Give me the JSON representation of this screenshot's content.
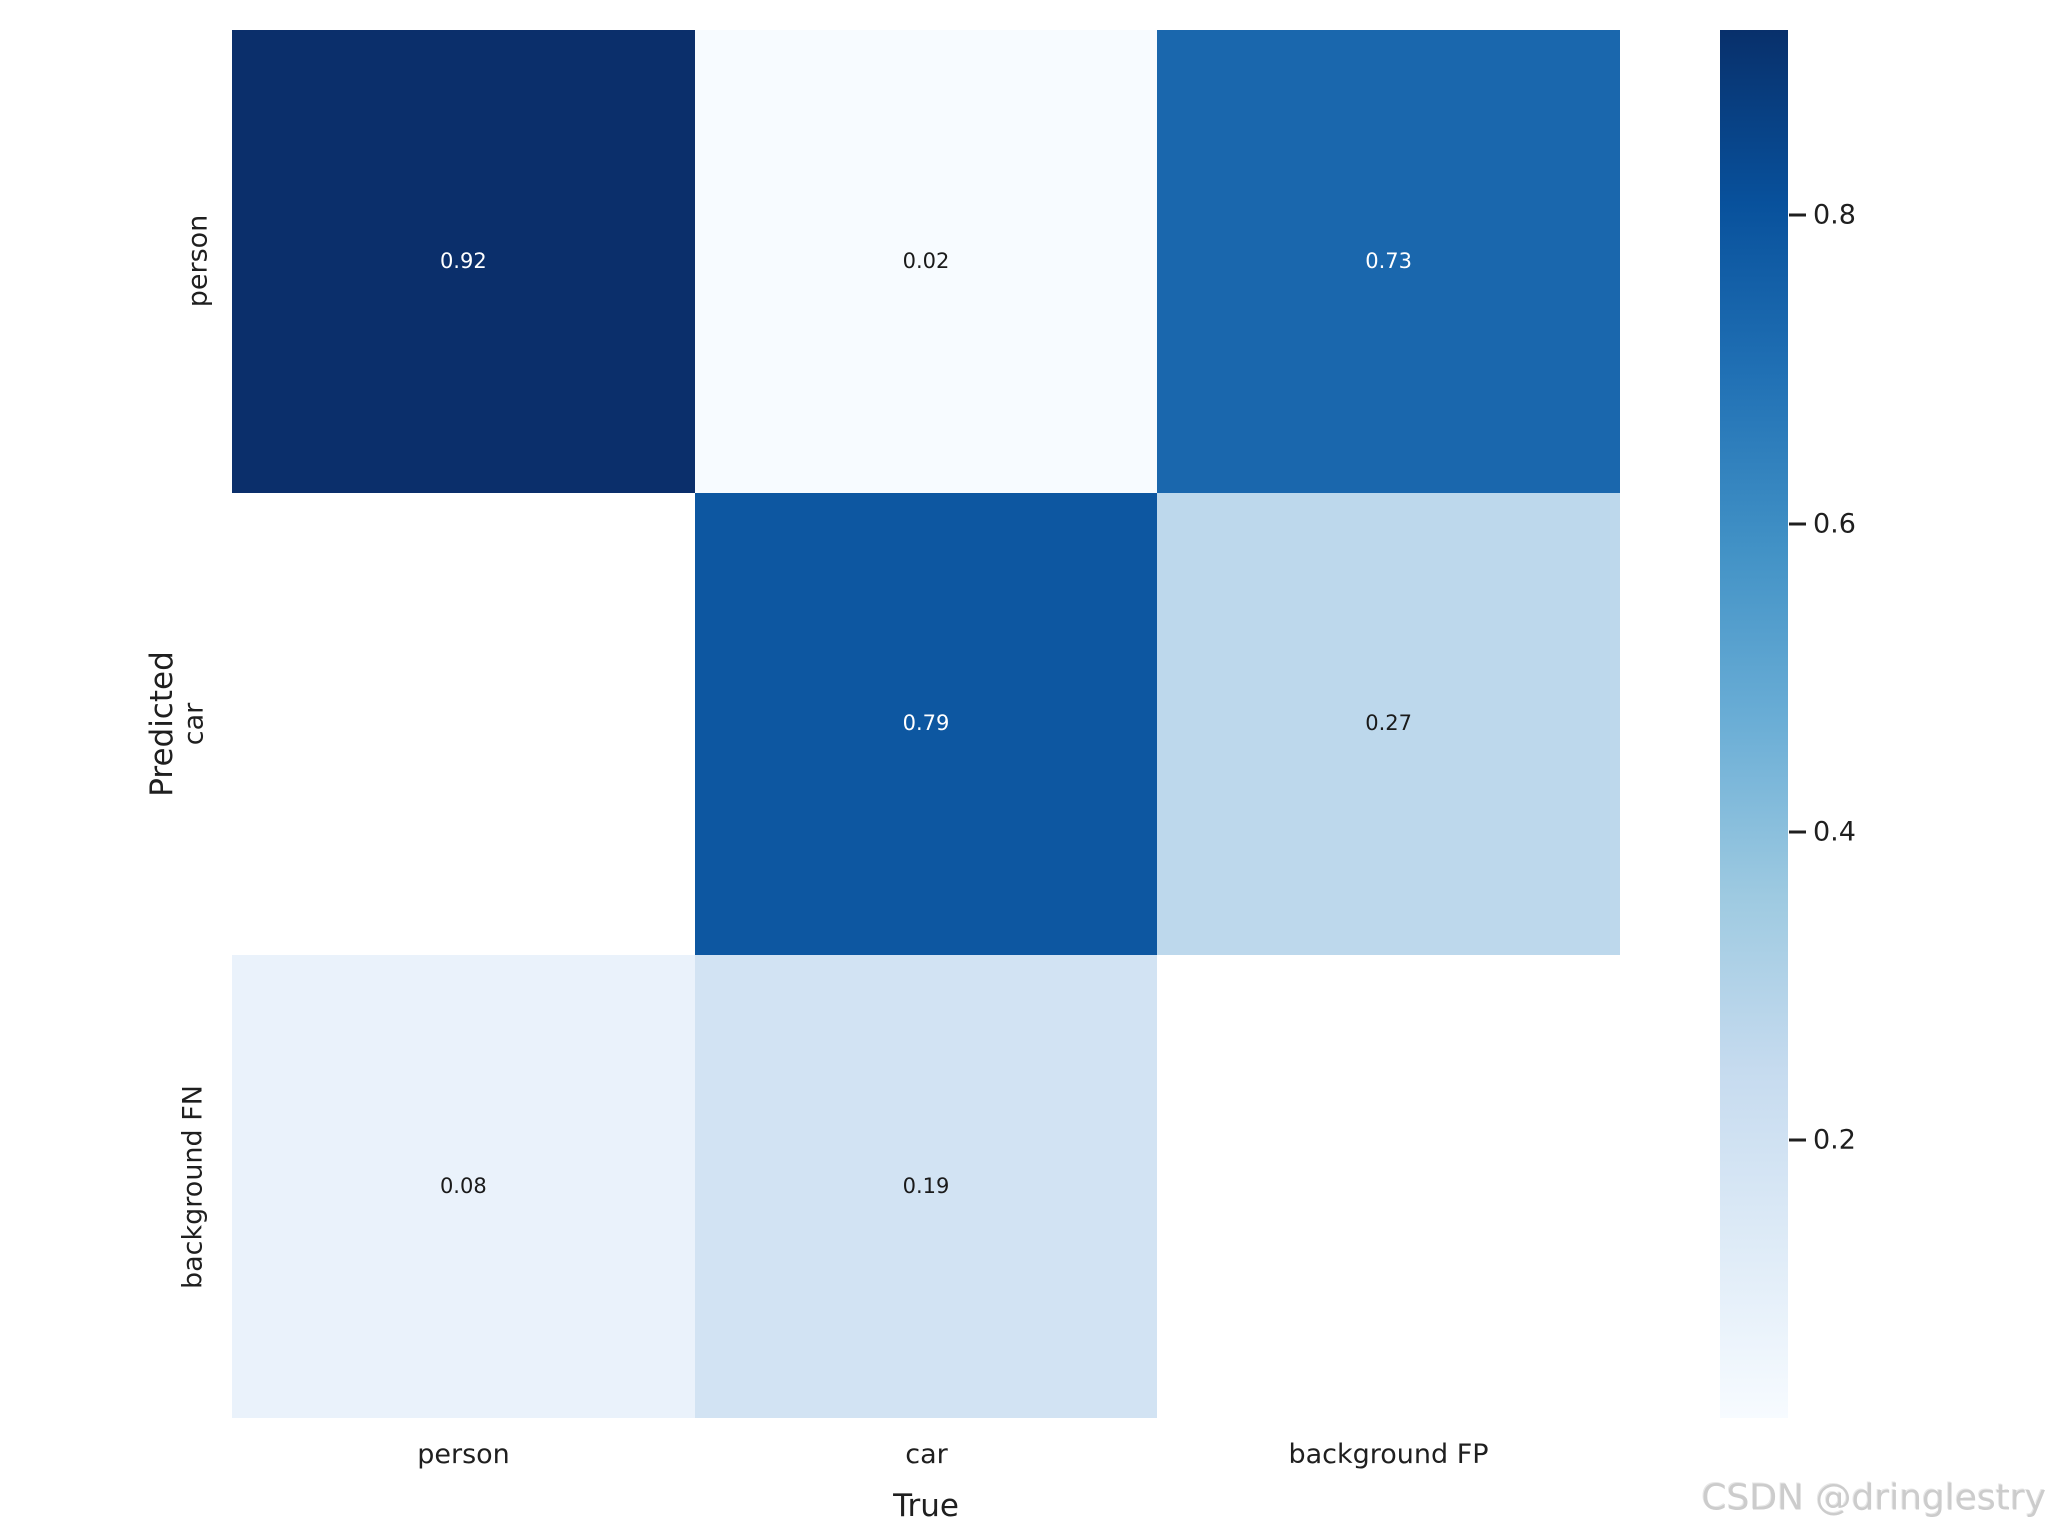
{
  "watermark": "CSDN @dringlestry",
  "axes": {
    "x_label": "True",
    "y_label": "Predicted"
  },
  "x_tick_labels": [
    "person",
    "car",
    "background FP"
  ],
  "y_tick_labels": [
    "person",
    "car",
    "background FN"
  ],
  "colorbar": {
    "tick_labels": [
      "0.8",
      "0.6",
      "0.4",
      "0.2"
    ],
    "tick_values": [
      0.8,
      0.6,
      0.4,
      0.2
    ],
    "vmin": 0.02,
    "vmax": 0.92
  },
  "colors": {
    "annotation_light": "#ffffff",
    "annotation_dark": "#1a1a1a",
    "tick_text": "#1f1f1f",
    "watermark_gray": "#cccccc",
    "colormap_max": "#08306b",
    "colormap_min": "#f7fbff",
    "masked_cell": "#ffffff"
  },
  "chart_data": {
    "type": "heatmap",
    "title": "",
    "xlabel": "True",
    "ylabel": "Predicted",
    "x_categories": [
      "person",
      "car",
      "background FP"
    ],
    "y_categories": [
      "person",
      "car",
      "background FN"
    ],
    "matrix": [
      [
        0.92,
        0.02,
        0.73
      ],
      [
        null,
        0.79,
        0.27
      ],
      [
        0.08,
        0.19,
        null
      ]
    ],
    "colormap": "Blues",
    "vmin": 0.02,
    "vmax": 0.92,
    "colorbar_ticks": [
      0.8,
      0.6,
      0.4,
      0.2
    ],
    "legend_position": "right-colorbar",
    "grid": false,
    "cell_colors": [
      [
        "#0b2f6b",
        "#f7fbff",
        "#1a67ad"
      ],
      [
        "#ffffff",
        "#0d57a1",
        "#bdd8ec"
      ],
      [
        "#eaf2fb",
        "#d2e3f3",
        "#ffffff"
      ]
    ],
    "cell_text_colors": [
      [
        "#ffffff",
        "#1a1a1a",
        "#ffffff"
      ],
      [
        null,
        "#ffffff",
        "#1a1a1a"
      ],
      [
        "#1a1a1a",
        "#1a1a1a",
        null
      ]
    ]
  }
}
